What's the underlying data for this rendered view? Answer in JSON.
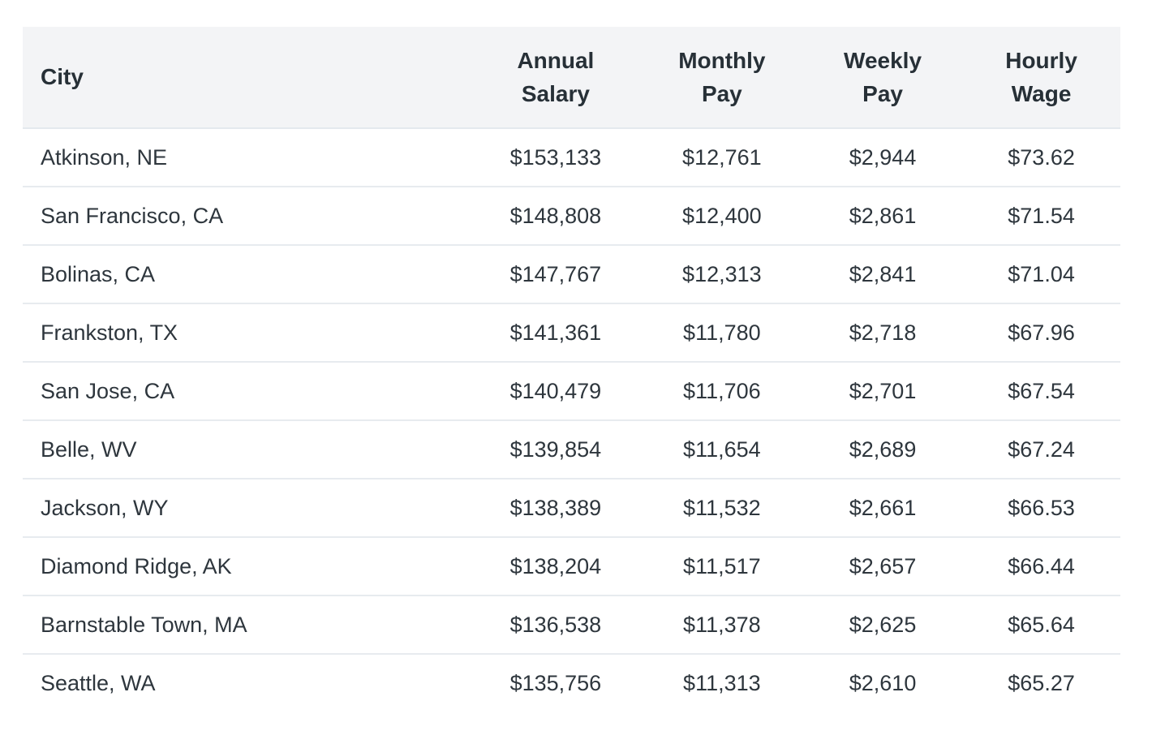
{
  "table": {
    "columns": [
      {
        "key": "city",
        "label": "City",
        "align": "left"
      },
      {
        "key": "annual",
        "label": "Annual\nSalary",
        "align": "center"
      },
      {
        "key": "monthly",
        "label": "Monthly\nPay",
        "align": "center"
      },
      {
        "key": "weekly",
        "label": "Weekly\nPay",
        "align": "center"
      },
      {
        "key": "hourly",
        "label": "Hourly\nWage",
        "align": "center"
      }
    ],
    "rows": [
      {
        "city": "Atkinson, NE",
        "annual": "$153,133",
        "monthly": "$12,761",
        "weekly": "$2,944",
        "hourly": "$73.62"
      },
      {
        "city": "San Francisco, CA",
        "annual": "$148,808",
        "monthly": "$12,400",
        "weekly": "$2,861",
        "hourly": "$71.54"
      },
      {
        "city": "Bolinas, CA",
        "annual": "$147,767",
        "monthly": "$12,313",
        "weekly": "$2,841",
        "hourly": "$71.04"
      },
      {
        "city": "Frankston, TX",
        "annual": "$141,361",
        "monthly": "$11,780",
        "weekly": "$2,718",
        "hourly": "$67.96"
      },
      {
        "city": "San Jose, CA",
        "annual": "$140,479",
        "monthly": "$11,706",
        "weekly": "$2,701",
        "hourly": "$67.54"
      },
      {
        "city": "Belle, WV",
        "annual": "$139,854",
        "monthly": "$11,654",
        "weekly": "$2,689",
        "hourly": "$67.24"
      },
      {
        "city": "Jackson, WY",
        "annual": "$138,389",
        "monthly": "$11,532",
        "weekly": "$2,661",
        "hourly": "$66.53"
      },
      {
        "city": "Diamond Ridge, AK",
        "annual": "$138,204",
        "monthly": "$11,517",
        "weekly": "$2,657",
        "hourly": "$66.44"
      },
      {
        "city": "Barnstable Town, MA",
        "annual": "$136,538",
        "monthly": "$11,378",
        "weekly": "$2,625",
        "hourly": "$65.64"
      },
      {
        "city": "Seattle, WA",
        "annual": "$135,756",
        "monthly": "$11,313",
        "weekly": "$2,610",
        "hourly": "$65.27"
      }
    ],
    "colors": {
      "page_bg": "#ffffff",
      "header_bg": "#f3f4f6",
      "divider": "#e7ebef",
      "header_text": "#273037",
      "body_text": "#2e363d"
    }
  }
}
